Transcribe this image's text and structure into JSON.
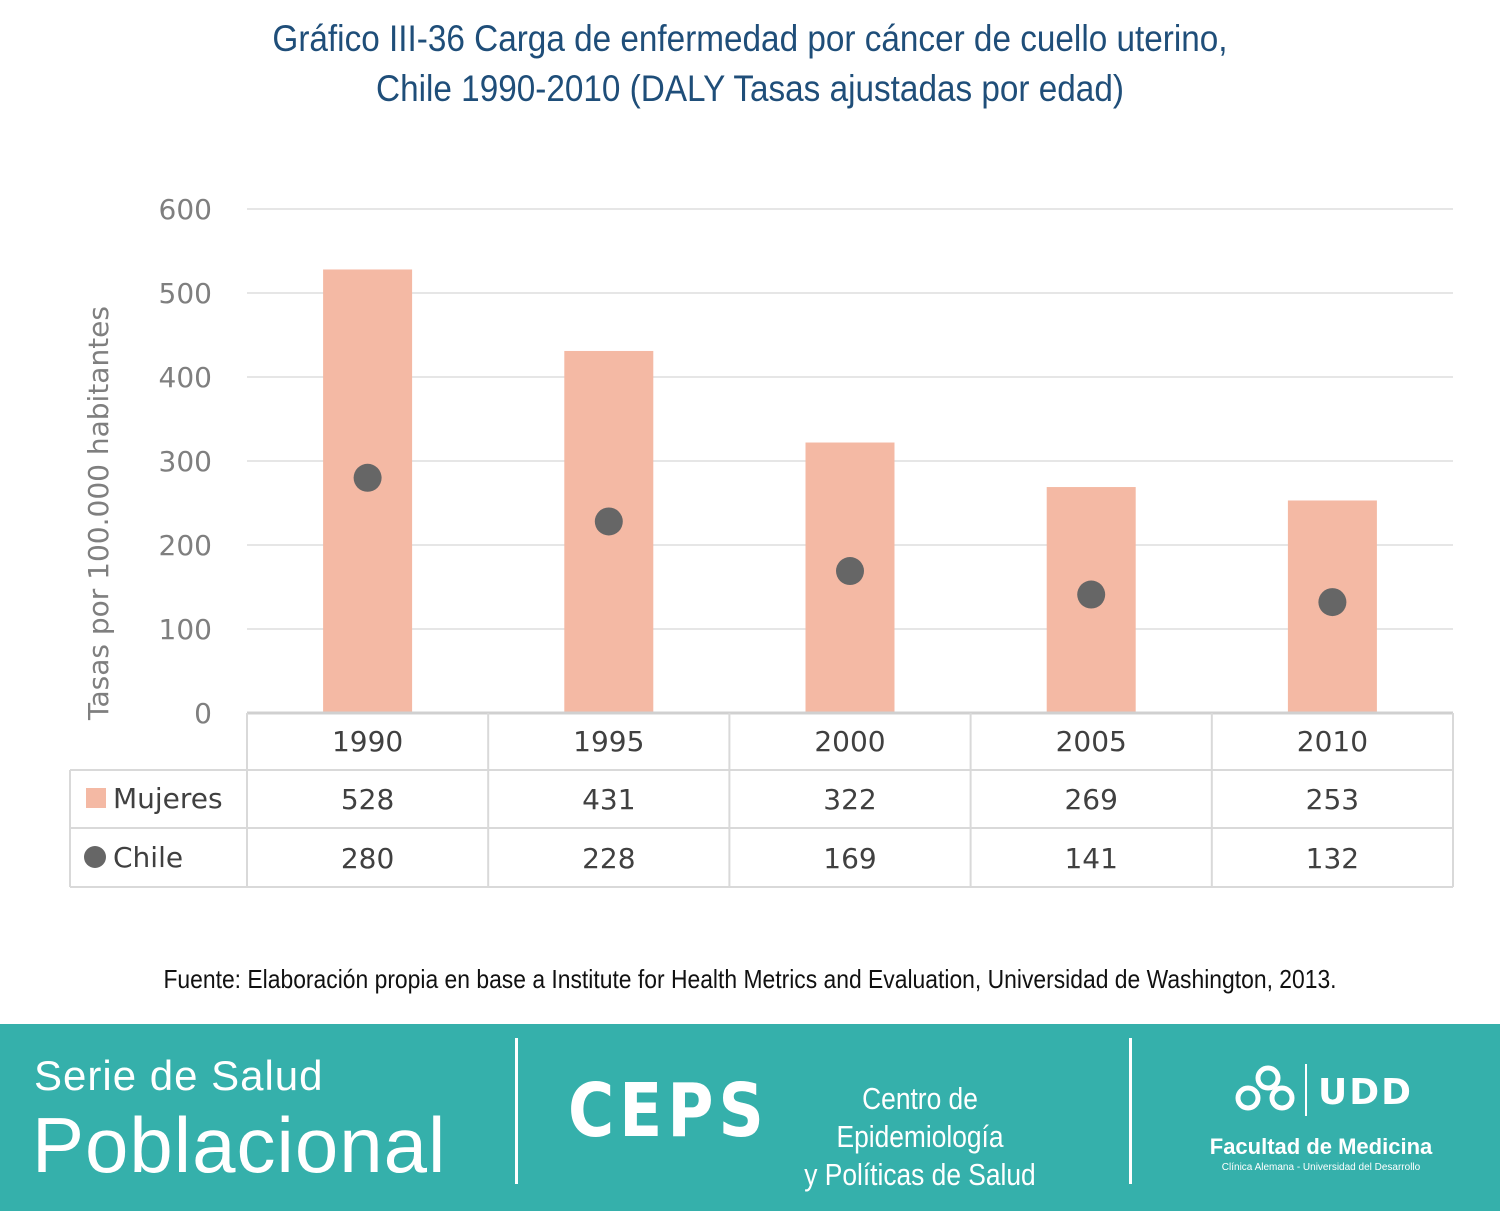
{
  "chart_data": {
    "type": "bar",
    "title_lines": [
      "Gráfico III-36 Carga de enfermedad por cáncer de cuello uterino,",
      "Chile 1990-2010 (DALY Tasas ajustadas por edad)"
    ],
    "categories": [
      "1990",
      "1995",
      "2000",
      "2005",
      "2010"
    ],
    "series": [
      {
        "name": "Mujeres",
        "marker": "bar",
        "color": "#f4b9a4",
        "values": [
          528,
          431,
          322,
          269,
          253
        ]
      },
      {
        "name": "Chile",
        "marker": "dot",
        "color": "#666666",
        "values": [
          280,
          228,
          169,
          141,
          132
        ]
      }
    ],
    "ylabel": "Tasas por 100.000 habitantes",
    "ylim": [
      0,
      600
    ],
    "yticks": [
      0,
      100,
      200,
      300,
      400,
      500,
      600
    ],
    "grid": true,
    "data_table": true
  },
  "source": "Fuente: Elaboración propia en base a Institute for Health Metrics and Evaluation, Universidad de Washington, 2013.",
  "footer": {
    "serie_line1": "Serie de Salud",
    "serie_line2": "Poblacional",
    "ceps_logo": "CEPS",
    "ceps_name_line1": "Centro de Epidemiología",
    "ceps_name_line2": "y Políticas de Salud",
    "udd_logo": "UDD",
    "udd_faculty": "Facultad de Medicina",
    "udd_sub": "Clínica Alemana - Universidad del Desarrollo",
    "background": "#35b0ab"
  }
}
